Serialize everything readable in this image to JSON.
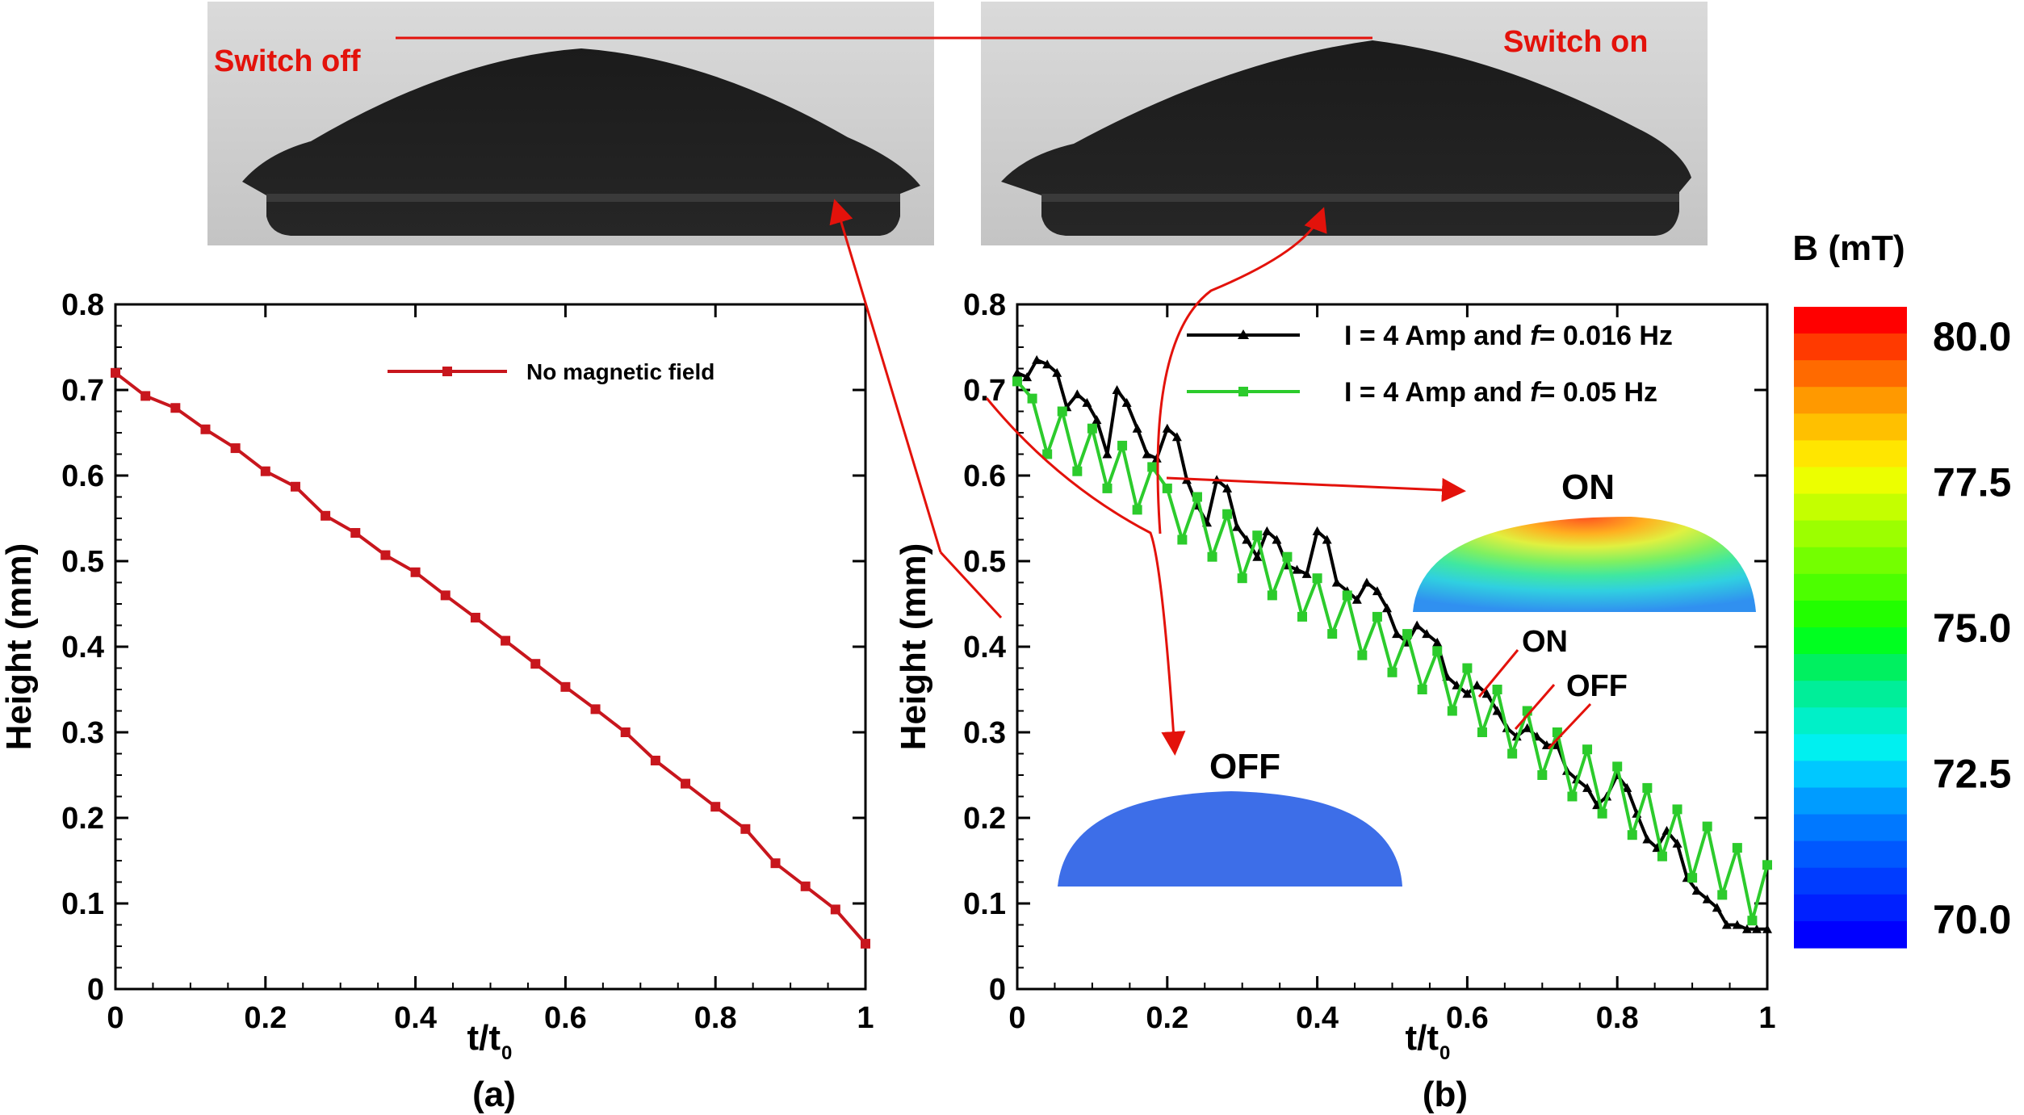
{
  "photos": {
    "left_label": "Switch off",
    "right_label": "Switch on"
  },
  "colorbar": {
    "title": "B (mT)",
    "ticks": [
      "80.0",
      "77.5",
      "75.0",
      "72.5",
      "70.0"
    ],
    "min": 69.5,
    "max": 80.5,
    "colors": [
      "#ff0000",
      "#ff3a00",
      "#ff6a00",
      "#ff9900",
      "#ffc000",
      "#ffe600",
      "#ecff00",
      "#c4ff00",
      "#9cff00",
      "#74ff00",
      "#4cff00",
      "#22ff00",
      "#00ff20",
      "#00f060",
      "#00ee99",
      "#00f0c8",
      "#00f0f0",
      "#00c8ff",
      "#009cff",
      "#0078ff",
      "#0058ff",
      "#003cff",
      "#0020ff",
      "#0000ff"
    ],
    "colors_note": "top to bottom"
  },
  "insets": {
    "on_label": "ON",
    "off_label": "OFF",
    "on_colors": [
      "#ff5020",
      "#ffb020",
      "#e0f040",
      "#80f060",
      "#40e8a0",
      "#30d0e0",
      "#3090f0"
    ],
    "off_color": "#3d6ee8"
  },
  "annotations": {
    "on": "ON",
    "off": "OFF"
  },
  "chart_data": [
    {
      "id": "a",
      "type": "line",
      "panel_label": "(a)",
      "xlabel": "t/t",
      "xlabel_sub": "0",
      "ylabel": "Height (mm)",
      "xlim": [
        0,
        1
      ],
      "ylim": [
        0,
        0.8
      ],
      "xticks": [
        "0",
        "0.2",
        "0.4",
        "0.6",
        "0.8",
        "1"
      ],
      "yticks": [
        "0",
        "0.1",
        "0.2",
        "0.3",
        "0.4",
        "0.5",
        "0.6",
        "0.7",
        "0.8"
      ],
      "legend_position": "top-right",
      "series": [
        {
          "name": "No magnetic field",
          "color": "#c8161d",
          "marker": "square",
          "x": [
            0,
            0.04,
            0.08,
            0.12,
            0.16,
            0.2,
            0.24,
            0.28,
            0.32,
            0.36,
            0.4,
            0.44,
            0.48,
            0.52,
            0.56,
            0.6,
            0.64,
            0.68,
            0.72,
            0.76,
            0.8,
            0.84,
            0.88,
            0.92,
            0.96,
            1.0
          ],
          "y": [
            0.72,
            0.693,
            0.679,
            0.654,
            0.632,
            0.605,
            0.587,
            0.553,
            0.533,
            0.507,
            0.487,
            0.46,
            0.434,
            0.407,
            0.38,
            0.353,
            0.327,
            0.3,
            0.267,
            0.24,
            0.213,
            0.187,
            0.147,
            0.12,
            0.093,
            0.053
          ]
        }
      ]
    },
    {
      "id": "b",
      "type": "line",
      "panel_label": "(b)",
      "xlabel": "t/t",
      "xlabel_sub": "0",
      "ylabel": "Height (mm)",
      "xlim": [
        0,
        1
      ],
      "ylim": [
        0,
        0.8
      ],
      "xticks": [
        "0",
        "0.2",
        "0.4",
        "0.6",
        "0.8",
        "1"
      ],
      "yticks": [
        "0",
        "0.1",
        "0.2",
        "0.3",
        "0.4",
        "0.5",
        "0.6",
        "0.7",
        "0.8"
      ],
      "legend_position": "top-right",
      "series": [
        {
          "name_prefix": "I = 4 Amp and ",
          "name_f": "f",
          "name_suffix": "= 0.016 Hz",
          "color": "#000000",
          "marker": "triangle",
          "x": [
            0,
            0.013,
            0.026,
            0.04,
            0.053,
            0.066,
            0.08,
            0.093,
            0.106,
            0.12,
            0.133,
            0.146,
            0.16,
            0.173,
            0.186,
            0.2,
            0.213,
            0.226,
            0.24,
            0.253,
            0.266,
            0.28,
            0.293,
            0.306,
            0.32,
            0.333,
            0.346,
            0.36,
            0.373,
            0.386,
            0.4,
            0.413,
            0.426,
            0.44,
            0.453,
            0.466,
            0.48,
            0.493,
            0.506,
            0.52,
            0.533,
            0.546,
            0.56,
            0.573,
            0.586,
            0.6,
            0.613,
            0.626,
            0.64,
            0.653,
            0.666,
            0.68,
            0.693,
            0.706,
            0.72,
            0.733,
            0.746,
            0.76,
            0.773,
            0.786,
            0.8,
            0.813,
            0.826,
            0.84,
            0.853,
            0.866,
            0.88,
            0.893,
            0.906,
            0.92,
            0.933,
            0.946,
            0.96,
            0.973,
            0.986,
            1.0
          ],
          "y": [
            0.72,
            0.715,
            0.735,
            0.73,
            0.72,
            0.68,
            0.695,
            0.685,
            0.665,
            0.625,
            0.7,
            0.685,
            0.655,
            0.625,
            0.62,
            0.655,
            0.645,
            0.595,
            0.565,
            0.545,
            0.595,
            0.585,
            0.54,
            0.525,
            0.505,
            0.535,
            0.525,
            0.495,
            0.49,
            0.485,
            0.535,
            0.525,
            0.475,
            0.465,
            0.455,
            0.475,
            0.465,
            0.445,
            0.415,
            0.405,
            0.425,
            0.415,
            0.405,
            0.365,
            0.355,
            0.345,
            0.355,
            0.345,
            0.325,
            0.305,
            0.295,
            0.305,
            0.295,
            0.285,
            0.285,
            0.255,
            0.245,
            0.235,
            0.215,
            0.225,
            0.25,
            0.235,
            0.205,
            0.175,
            0.165,
            0.185,
            0.17,
            0.13,
            0.115,
            0.105,
            0.095,
            0.075,
            0.075,
            0.07,
            0.07,
            0.07
          ]
        },
        {
          "name_prefix": "I = 4 Amp and ",
          "name_f": "f",
          "name_suffix": "= 0.05 Hz",
          "color": "#2ccb2c",
          "marker": "square",
          "x": [
            0,
            0.02,
            0.04,
            0.06,
            0.08,
            0.1,
            0.12,
            0.14,
            0.16,
            0.18,
            0.2,
            0.22,
            0.24,
            0.26,
            0.28,
            0.3,
            0.32,
            0.34,
            0.36,
            0.38,
            0.4,
            0.42,
            0.44,
            0.46,
            0.48,
            0.5,
            0.52,
            0.54,
            0.56,
            0.58,
            0.6,
            0.62,
            0.64,
            0.66,
            0.68,
            0.7,
            0.72,
            0.74,
            0.76,
            0.78,
            0.8,
            0.82,
            0.84,
            0.86,
            0.88,
            0.9,
            0.92,
            0.94,
            0.96,
            0.98,
            1.0
          ],
          "y": [
            0.71,
            0.69,
            0.625,
            0.675,
            0.605,
            0.655,
            0.585,
            0.635,
            0.56,
            0.61,
            0.585,
            0.525,
            0.575,
            0.505,
            0.555,
            0.48,
            0.53,
            0.46,
            0.505,
            0.435,
            0.48,
            0.415,
            0.46,
            0.39,
            0.435,
            0.37,
            0.415,
            0.35,
            0.395,
            0.325,
            0.375,
            0.3,
            0.35,
            0.275,
            0.325,
            0.25,
            0.3,
            0.225,
            0.28,
            0.205,
            0.26,
            0.18,
            0.235,
            0.155,
            0.21,
            0.13,
            0.19,
            0.11,
            0.165,
            0.08,
            0.145
          ]
        }
      ]
    }
  ]
}
